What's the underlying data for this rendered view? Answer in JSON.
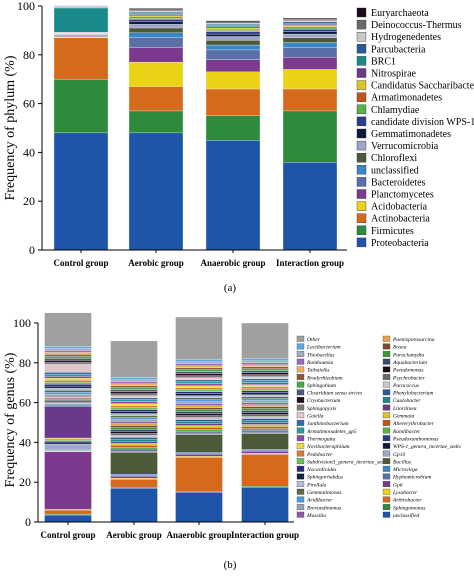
{
  "panels": {
    "a_label": "(a)",
    "b_label": "(b)"
  },
  "chart_data": [
    {
      "type": "bar",
      "stacked": true,
      "panel": "(a)",
      "ylabel": "Frequency of phylum (%)",
      "ylim": [
        0,
        100
      ],
      "yticks": [
        "0",
        "20",
        "40",
        "60",
        "80",
        "100"
      ],
      "categories": [
        "Control group",
        "Aerobic group",
        "Anaerobic group",
        "Interaction group"
      ],
      "series": [
        {
          "name": "Proteobacteria",
          "color": "#1f55a8",
          "values": [
            48,
            48,
            45,
            36
          ]
        },
        {
          "name": "Firmicutes",
          "color": "#2e8a3c",
          "values": [
            22,
            9,
            10,
            21
          ]
        },
        {
          "name": "Actinobacteria",
          "color": "#d66a1c",
          "values": [
            17,
            10,
            11,
            9
          ]
        },
        {
          "name": "Acidobacteria",
          "color": "#ead316",
          "values": [
            0.3,
            10,
            7,
            8
          ]
        },
        {
          "name": "Planctomycetes",
          "color": "#7c3a8e",
          "values": [
            0.3,
            6,
            5,
            5
          ]
        },
        {
          "name": "Bacteroidetes",
          "color": "#5a6fa8",
          "values": [
            0.3,
            4,
            4,
            4
          ]
        },
        {
          "name": "unclassified",
          "color": "#3a86c8",
          "values": [
            0.3,
            2,
            2,
            2
          ]
        },
        {
          "name": "Chloroflexi",
          "color": "#4c5a3a",
          "values": [
            0.2,
            2,
            2,
            2
          ]
        },
        {
          "name": "Verrucomicrobia",
          "color": "#9da6c8",
          "values": [
            0.2,
            1.5,
            1.5,
            1.5
          ]
        },
        {
          "name": "Gemmatimonadetes",
          "color": "#0a1a3a",
          "values": [
            0.1,
            1,
            1,
            1
          ]
        },
        {
          "name": "candidate division WPS-1",
          "color": "#2a3c8c",
          "values": [
            0.1,
            1,
            1,
            1
          ]
        },
        {
          "name": "Chlamydiae",
          "color": "#5ab04a",
          "values": [
            0.1,
            0.5,
            0.5,
            0.5
          ]
        },
        {
          "name": "Armatimonadetes",
          "color": "#c2561a",
          "values": [
            0.1,
            0.5,
            0.5,
            0.5
          ]
        },
        {
          "name": "Candidatus Saccharibacteria",
          "color": "#d9c42a",
          "values": [
            0.1,
            0.5,
            0.5,
            0.5
          ]
        },
        {
          "name": "Nitrospirae",
          "color": "#6a3a8a",
          "values": [
            0.1,
            0.5,
            0.5,
            0.5
          ]
        },
        {
          "name": "BRC1",
          "color": "#1a8a8a",
          "values": [
            10,
            0.5,
            0.5,
            0.5
          ]
        },
        {
          "name": "Parcubacteria",
          "color": "#2a5a9a",
          "values": [
            0.3,
            0.5,
            0.5,
            0.5
          ]
        },
        {
          "name": "Hydrogenedentes",
          "color": "#c8c8c8",
          "values": [
            0.2,
            0.5,
            0.5,
            0.5
          ]
        },
        {
          "name": "Deinococcus-Thermus",
          "color": "#6a6a6a",
          "values": [
            0.2,
            0.5,
            0.5,
            0.5
          ]
        },
        {
          "name": "Euryarchaeota",
          "color": "#1a0a1a",
          "values": [
            0.2,
            0.5,
            0.5,
            0.5
          ]
        }
      ]
    },
    {
      "type": "bar",
      "stacked": true,
      "panel": "(b)",
      "ylabel": "Frequency of genus (%)",
      "ylim": [
        0,
        100
      ],
      "yticks": [
        "0",
        "20",
        "40",
        "60",
        "80",
        "100"
      ],
      "categories": [
        "Control group",
        "Aerobic group",
        "Anaerobic group",
        "Interaction group"
      ],
      "series": [
        {
          "name": "unclassified",
          "color": "#1f55a8",
          "values": [
            3.5,
            17,
            15,
            17.5
          ]
        },
        {
          "name": "Sphingomonas",
          "color": "#2e8a3c",
          "values": [
            0.5,
            0.5,
            0.5,
            0.5
          ]
        },
        {
          "name": "Arthrobacter",
          "color": "#d66a1c",
          "values": [
            2,
            4,
            17,
            16
          ]
        },
        {
          "name": "Lysobacter",
          "color": "#ead316",
          "values": [
            0.3,
            0.5,
            0.5,
            0.5
          ]
        },
        {
          "name": "Gp6",
          "color": "#7c3a8e",
          "values": [
            29,
            1,
            1,
            1
          ]
        },
        {
          "name": "Hyphomicrobium",
          "color": "#5a6fa8",
          "values": [
            0.3,
            0.5,
            0.5,
            0.5
          ]
        },
        {
          "name": "Microvirga",
          "color": "#3a86c8",
          "values": [
            0.3,
            0.5,
            0.5,
            0.5
          ]
        },
        {
          "name": "Bacillus",
          "color": "#4c5a3a",
          "values": [
            0.3,
            11,
            9,
            8
          ]
        },
        {
          "name": "Gp10",
          "color": "#9da6c8",
          "values": [
            3,
            0.5,
            0.5,
            0.5
          ]
        },
        {
          "name": "WPS-1_genera_incertae_sedis",
          "color": "#0a1a3a",
          "values": [
            1,
            0.5,
            0.5,
            0.5
          ]
        },
        {
          "name": "Pseudoxanthomonas",
          "color": "#2a3c8c",
          "values": [
            0.5,
            0.5,
            0.5,
            0.5
          ]
        },
        {
          "name": "Ramlibacter",
          "color": "#5ab04a",
          "values": [
            0.5,
            1,
            1,
            1
          ]
        },
        {
          "name": "Altererythrobacter",
          "color": "#c2561a",
          "values": [
            0.5,
            1,
            1,
            1
          ]
        },
        {
          "name": "Gemmata",
          "color": "#d9c42a",
          "values": [
            0.5,
            1,
            1,
            1
          ]
        },
        {
          "name": "Litorilinea",
          "color": "#6a3a8a",
          "values": [
            16,
            1,
            1,
            1
          ]
        },
        {
          "name": "Caulobacter",
          "color": "#1a8a8a",
          "values": [
            0.5,
            1,
            1,
            1
          ]
        },
        {
          "name": "Phenylobacterium",
          "color": "#2a5a9a",
          "values": [
            0.5,
            1,
            1,
            1
          ]
        },
        {
          "name": "Paracoccus",
          "color": "#c8c8c8",
          "values": [
            0.5,
            1,
            1,
            1
          ]
        },
        {
          "name": "Psychrobacter",
          "color": "#6a6a6a",
          "values": [
            0.5,
            1,
            1,
            1
          ]
        },
        {
          "name": "Pseudomonas",
          "color": "#1a0a1a",
          "values": [
            0.5,
            1,
            1,
            1
          ]
        },
        {
          "name": "Aquabacterium",
          "color": "#3a4a6a",
          "values": [
            0.5,
            1,
            1,
            1
          ]
        },
        {
          "name": "Paraclamydia",
          "color": "#3a9a3a",
          "values": [
            0.5,
            1,
            1,
            1
          ]
        },
        {
          "name": "Bosea",
          "color": "#7a4a2a",
          "values": [
            0.5,
            1,
            1,
            1
          ]
        },
        {
          "name": "Paenisporosarcina",
          "color": "#e8a04a",
          "values": [
            0.5,
            1,
            1,
            1
          ]
        },
        {
          "name": "Massilia",
          "color": "#8a5aa8",
          "values": [
            0.5,
            1,
            1,
            1
          ]
        },
        {
          "name": "Brevundimonas",
          "color": "#9aa0b8",
          "values": [
            1,
            1,
            1,
            1
          ]
        },
        {
          "name": "Aridibacter",
          "color": "#4a9ad8",
          "values": [
            1,
            1,
            1,
            1
          ]
        },
        {
          "name": "Gemmatimonas",
          "color": "#5a6a4a",
          "values": [
            1,
            1,
            1,
            1
          ]
        },
        {
          "name": "Pirellula",
          "color": "#b8b8d8",
          "values": [
            1,
            1,
            1,
            1
          ]
        },
        {
          "name": "Sphingorhabdus",
          "color": "#102040",
          "values": [
            1,
            1,
            1,
            1
          ]
        },
        {
          "name": "Nocardioides",
          "color": "#2a2a7a",
          "values": [
            1,
            1,
            1,
            1
          ]
        },
        {
          "name": "Subdivision3_genera_incertae_sedis",
          "color": "#6ac05a",
          "values": [
            1,
            1,
            1,
            1
          ]
        },
        {
          "name": "Pedobacter",
          "color": "#d87a3a",
          "values": [
            1,
            1,
            1,
            1
          ]
        },
        {
          "name": "Novibacteraphilum",
          "color": "#ead84a",
          "values": [
            1,
            1,
            1,
            1
          ]
        },
        {
          "name": "Thermogutta",
          "color": "#8a4aa8",
          "values": [
            1,
            1,
            1,
            1
          ]
        },
        {
          "name": "Armatimonadetes_gp5",
          "color": "#2a9a9a",
          "values": [
            1,
            1,
            1,
            1
          ]
        },
        {
          "name": "Janthinobacterium",
          "color": "#3a6aaa",
          "values": [
            1,
            1,
            1,
            1
          ]
        },
        {
          "name": "Gaiella",
          "color": "#e0c8c8",
          "values": [
            4,
            1,
            1,
            1
          ]
        },
        {
          "name": "Sphingopyxis",
          "color": "#7a7a7a",
          "values": [
            1,
            1,
            1,
            1
          ]
        },
        {
          "name": "Cryobacterium",
          "color": "#201020",
          "values": [
            1,
            1,
            1,
            1
          ]
        },
        {
          "name": "Clostridium sensu stricto",
          "color": "#4a5a7a",
          "values": [
            1,
            1,
            1,
            1
          ]
        },
        {
          "name": "Sphingobium",
          "color": "#4aaa4a",
          "values": [
            1,
            1,
            1,
            1
          ]
        },
        {
          "name": "Bradyrhizobium",
          "color": "#8a5a3a",
          "values": [
            1,
            1,
            1,
            1
          ]
        },
        {
          "name": "Taibaiella",
          "color": "#f0b05a",
          "values": [
            1,
            1,
            1,
            1
          ]
        },
        {
          "name": "Romboutsia",
          "color": "#9a6ab8",
          "values": [
            1,
            1,
            1,
            1
          ]
        },
        {
          "name": "Thiobacillus",
          "color": "#a8a8c0",
          "values": [
            1,
            1,
            1,
            1
          ]
        },
        {
          "name": "Lactibacterium",
          "color": "#5aa8e0",
          "values": [
            1,
            1,
            1,
            1
          ]
        },
        {
          "name": "Other",
          "color": "#a0a0a0",
          "values": [
            16.9,
            18.5,
            21.5,
            18
          ]
        }
      ]
    }
  ]
}
